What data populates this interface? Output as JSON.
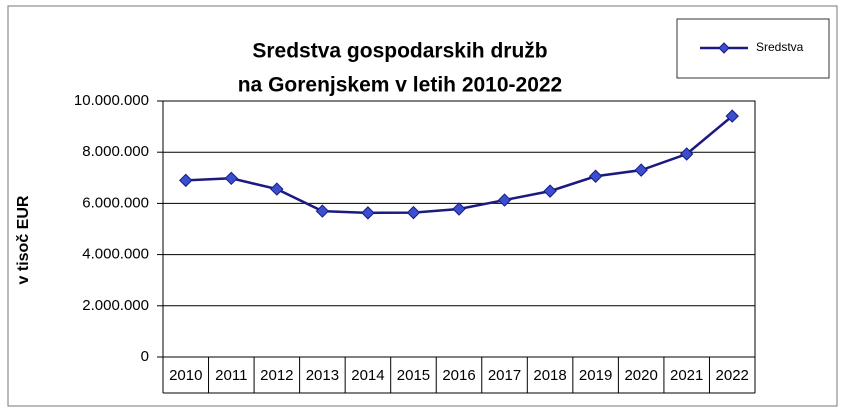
{
  "chart_data": {
    "type": "line",
    "title": [
      "Sredstva gospodarskih družb",
      "na Gorenjskem v letih 2010-2022"
    ],
    "y_label": "v tisoč EUR",
    "categories": [
      "2010",
      "2011",
      "2012",
      "2013",
      "2014",
      "2015",
      "2016",
      "2017",
      "2018",
      "2019",
      "2020",
      "2021",
      "2022"
    ],
    "series": [
      {
        "name": "Sredstva",
        "color": "#1a1a80",
        "marker_color": "#3a4fd0",
        "values": [
          6900000,
          6980000,
          6560000,
          5700000,
          5630000,
          5640000,
          5780000,
          6130000,
          6480000,
          7060000,
          7300000,
          7930000,
          9410000
        ]
      }
    ],
    "ylim": [
      0,
      10000000
    ],
    "yticks": [
      0,
      {
        "value": 2000000,
        "label": "2.000.000"
      },
      {
        "value": 4000000,
        "label": "4.000.000"
      },
      {
        "value": 6000000,
        "label": "6.000.000"
      },
      {
        "value": 8000000,
        "label": "8.000.000"
      },
      {
        "value": 10000000,
        "label": "10.000.000"
      }
    ],
    "grid": true,
    "legend": "top-right"
  }
}
